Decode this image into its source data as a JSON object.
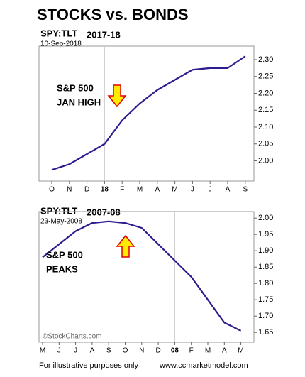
{
  "title": "STOCKS vs. BONDS",
  "footer": {
    "left": "For illustrative purposes only",
    "right": "www.ccmarketmodel.com"
  },
  "chart_data": [
    {
      "type": "line",
      "title": "SPY:TLT",
      "date": "10-Sep-2018",
      "period": "2017-18",
      "categories": [
        "O",
        "N",
        "D",
        "18",
        "F",
        "M",
        "A",
        "M",
        "J",
        "J",
        "A",
        "S"
      ],
      "series": [
        {
          "name": "SPY:TLT",
          "color": "#2b1d8f",
          "values": [
            1.973,
            1.99,
            2.02,
            2.05,
            2.12,
            2.17,
            2.21,
            2.24,
            2.27,
            2.275,
            2.275,
            2.31
          ]
        }
      ],
      "ylim": [
        1.94,
        2.34
      ],
      "yticks": [
        {
          "value": 2.0,
          "label": "2.00"
        },
        {
          "value": 2.05,
          "label": "2.05"
        },
        {
          "value": 2.1,
          "label": "2.10"
        },
        {
          "value": 2.15,
          "label": "2.15"
        },
        {
          "value": 2.2,
          "label": "2.20"
        },
        {
          "value": 2.25,
          "label": "2.25"
        },
        {
          "value": 2.3,
          "label": "2.30"
        }
      ],
      "annotations": [
        "S&P 500",
        "JAN HIGH"
      ]
    },
    {
      "type": "line",
      "title": "SPY:TLT",
      "date": "23-May-2008",
      "period": "2007-08",
      "categories": [
        "M",
        "J",
        "J",
        "A",
        "S",
        "O",
        "N",
        "D",
        "08",
        "F",
        "M",
        "A",
        "M"
      ],
      "series": [
        {
          "name": "SPY:TLT",
          "color": "#2b1d8f",
          "values": [
            1.88,
            1.92,
            1.96,
            1.985,
            1.99,
            1.985,
            1.97,
            1.92,
            1.87,
            1.82,
            1.75,
            1.68,
            1.655
          ]
        }
      ],
      "ylim": [
        1.62,
        2.02
      ],
      "yticks": [
        {
          "value": 1.65,
          "label": "1.65"
        },
        {
          "value": 1.7,
          "label": "1.70"
        },
        {
          "value": 1.75,
          "label": "1.75"
        },
        {
          "value": 1.8,
          "label": "1.80"
        },
        {
          "value": 1.85,
          "label": "1.85"
        },
        {
          "value": 1.9,
          "label": "1.90"
        },
        {
          "value": 1.95,
          "label": "1.95"
        },
        {
          "value": 2.0,
          "label": "2.00"
        }
      ],
      "annotations": [
        "S&P 500",
        "PEAKS"
      ],
      "source": "©StockCharts.com"
    }
  ]
}
